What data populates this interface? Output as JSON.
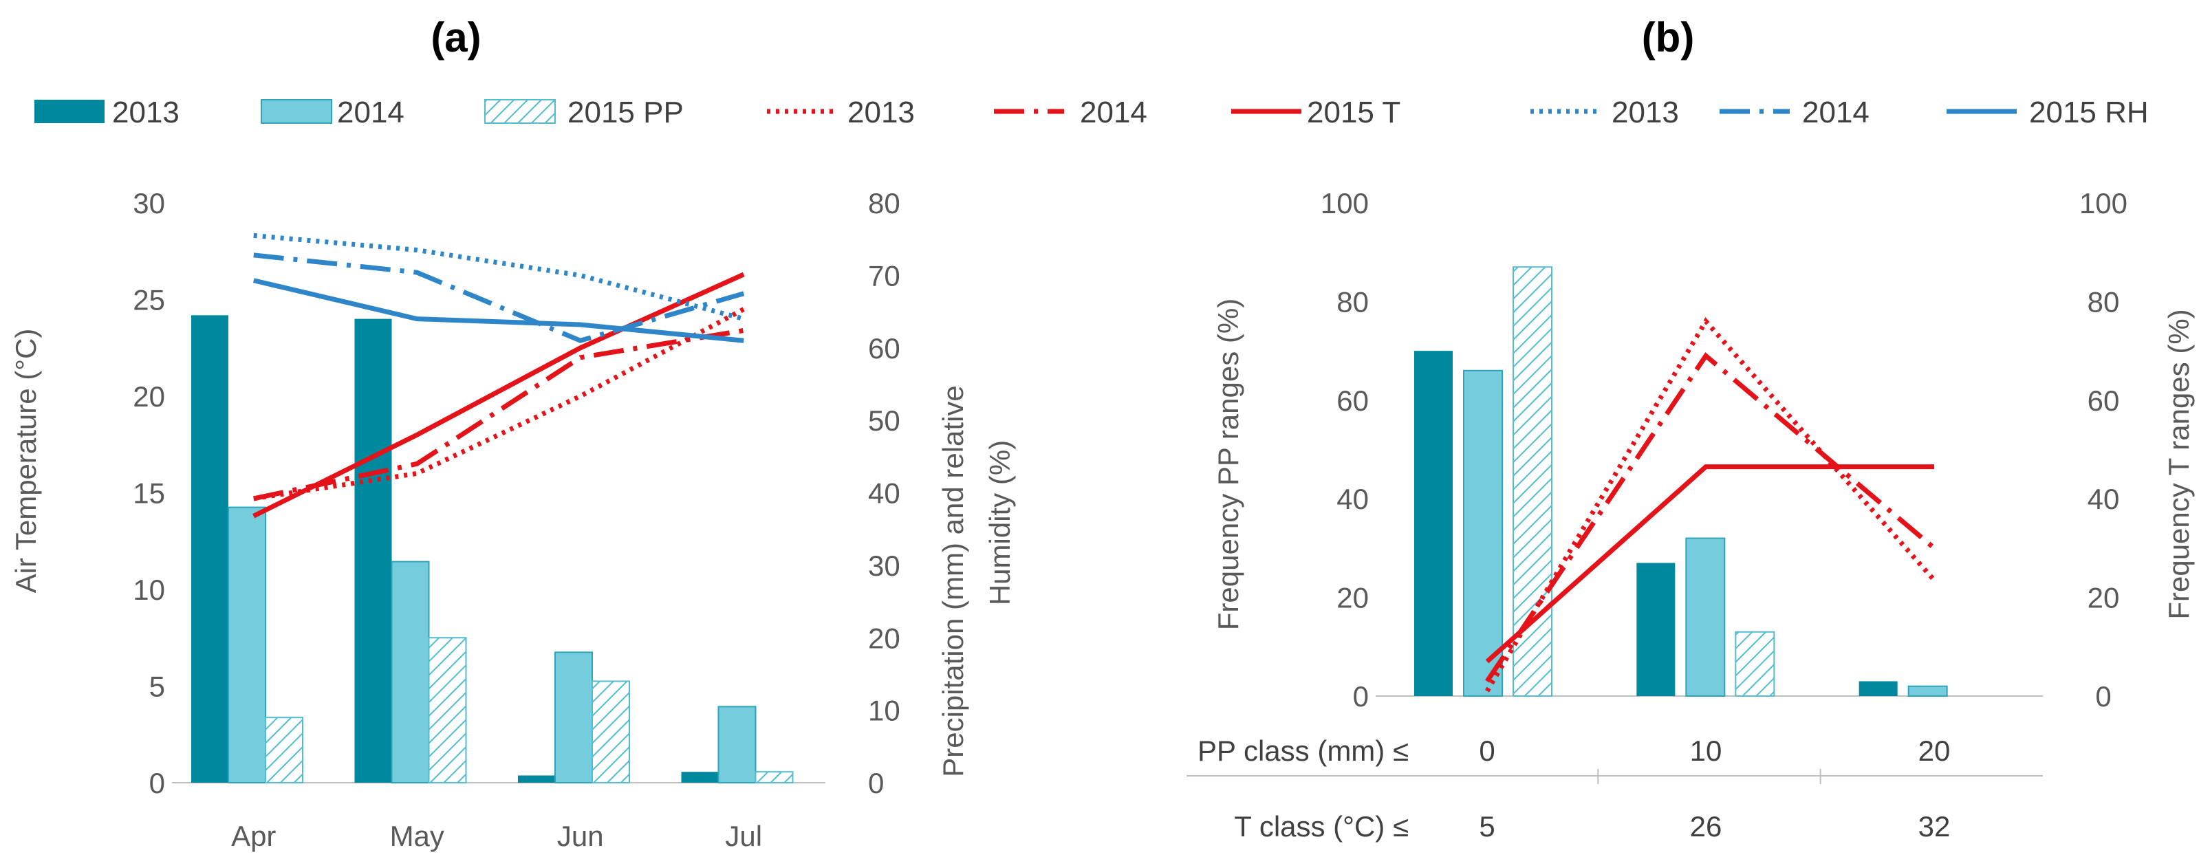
{
  "colors": {
    "pp2013": "#00899E",
    "pp2014": "#74CCDD",
    "pp2014_border": "#2FA3B8",
    "pp2015_hatch": "#52BCD0",
    "temp": "#E4131A",
    "rh": "#2E86C8",
    "axis": "#BFBFBF",
    "text": "#595959"
  },
  "legend": [
    {
      "label": "2013",
      "kind": "bar-solid",
      "color_key": "pp2013"
    },
    {
      "label": "2014",
      "kind": "bar-light",
      "color_key": "pp2014"
    },
    {
      "label": "2015 PP",
      "kind": "bar-hatch",
      "color_key": "pp2015_hatch"
    },
    {
      "label": "2013",
      "kind": "line-dotted",
      "color_key": "temp"
    },
    {
      "label": "2014",
      "kind": "line-dashdot",
      "color_key": "temp"
    },
    {
      "label": "2015 T",
      "kind": "line-solid",
      "color_key": "temp"
    },
    {
      "label": "2013",
      "kind": "line-dotted",
      "color_key": "rh"
    },
    {
      "label": "2014",
      "kind": "line-dashdot",
      "color_key": "rh"
    },
    {
      "label": "2015 RH",
      "kind": "line-solid",
      "color_key": "rh"
    }
  ],
  "chart_data": [
    {
      "type": "bar",
      "panel": "(a)",
      "title": "(a)",
      "categories": [
        "Apr",
        "May",
        "Jun",
        "Jul"
      ],
      "ylabel_left": "Air Temperature (°C)",
      "ylabel_right_line1": "Precipitation (mm)  and relative",
      "ylabel_right_line2": "Humidity (%)",
      "ylim_left": [
        0,
        30
      ],
      "ylim_right": [
        0,
        80
      ],
      "yticks_left": [
        "0",
        "5",
        "10",
        "15",
        "20",
        "25",
        "30"
      ],
      "yticks_right": [
        "0",
        "10",
        "20",
        "30",
        "40",
        "50",
        "60",
        "70",
        "80"
      ],
      "bar_series": [
        {
          "name": "2013",
          "axis": "right",
          "values": [
            64.5,
            64,
            1,
            1.5
          ]
        },
        {
          "name": "2014",
          "axis": "right",
          "values": [
            38,
            30.5,
            18,
            10.5
          ]
        },
        {
          "name": "2015 PP",
          "axis": "right",
          "values": [
            9,
            20,
            14,
            1.5
          ]
        }
      ],
      "line_series": [
        {
          "name": "2013 T",
          "axis": "left",
          "values": [
            14.7,
            16,
            20,
            24.5
          ]
        },
        {
          "name": "2014 T",
          "axis": "left",
          "values": [
            14.7,
            16.5,
            22,
            23.4
          ]
        },
        {
          "name": "2015 T",
          "axis": "left",
          "values": [
            13.8,
            18,
            22.5,
            26.3
          ]
        },
        {
          "name": "2013 RH",
          "axis": "right",
          "values": [
            75.5,
            73.5,
            70,
            64
          ]
        },
        {
          "name": "2014 RH",
          "axis": "right",
          "values": [
            72.8,
            70.4,
            61,
            67.5
          ]
        },
        {
          "name": "2015 RH",
          "axis": "right",
          "values": [
            69.3,
            64,
            63.2,
            61
          ]
        }
      ]
    },
    {
      "type": "bar",
      "panel": "(b)",
      "title": "(b)",
      "pp_class_label": "PP class (mm) ≤",
      "t_class_label": "T class (°C) ≤",
      "pp_classes": [
        "0",
        "10",
        "20"
      ],
      "t_classes": [
        "5",
        "26",
        "32"
      ],
      "ylabel_left": "Frequency PP ranges (%)",
      "ylabel_right": "Frequency  T ranges (%)",
      "ylim_left": [
        0,
        100
      ],
      "ylim_right": [
        0,
        100
      ],
      "yticks_left": [
        "0",
        "20",
        "40",
        "60",
        "80",
        "100"
      ],
      "yticks_right": [
        "0",
        "20",
        "40",
        "60",
        "80",
        "100"
      ],
      "bar_series": [
        {
          "name": "2013",
          "axis": "left",
          "values": [
            70,
            27,
            3
          ]
        },
        {
          "name": "2014",
          "axis": "left",
          "values": [
            66,
            32,
            2
          ]
        },
        {
          "name": "2015 PP",
          "axis": "left",
          "values": [
            87,
            13,
            0
          ]
        }
      ],
      "line_series": [
        {
          "name": "2013 T",
          "axis": "right",
          "values": [
            1,
            76,
            23.5
          ]
        },
        {
          "name": "2014 T",
          "axis": "right",
          "values": [
            3,
            69,
            30
          ]
        },
        {
          "name": "2015 T",
          "axis": "right",
          "values": [
            7,
            46.5,
            46.5
          ]
        }
      ]
    }
  ]
}
